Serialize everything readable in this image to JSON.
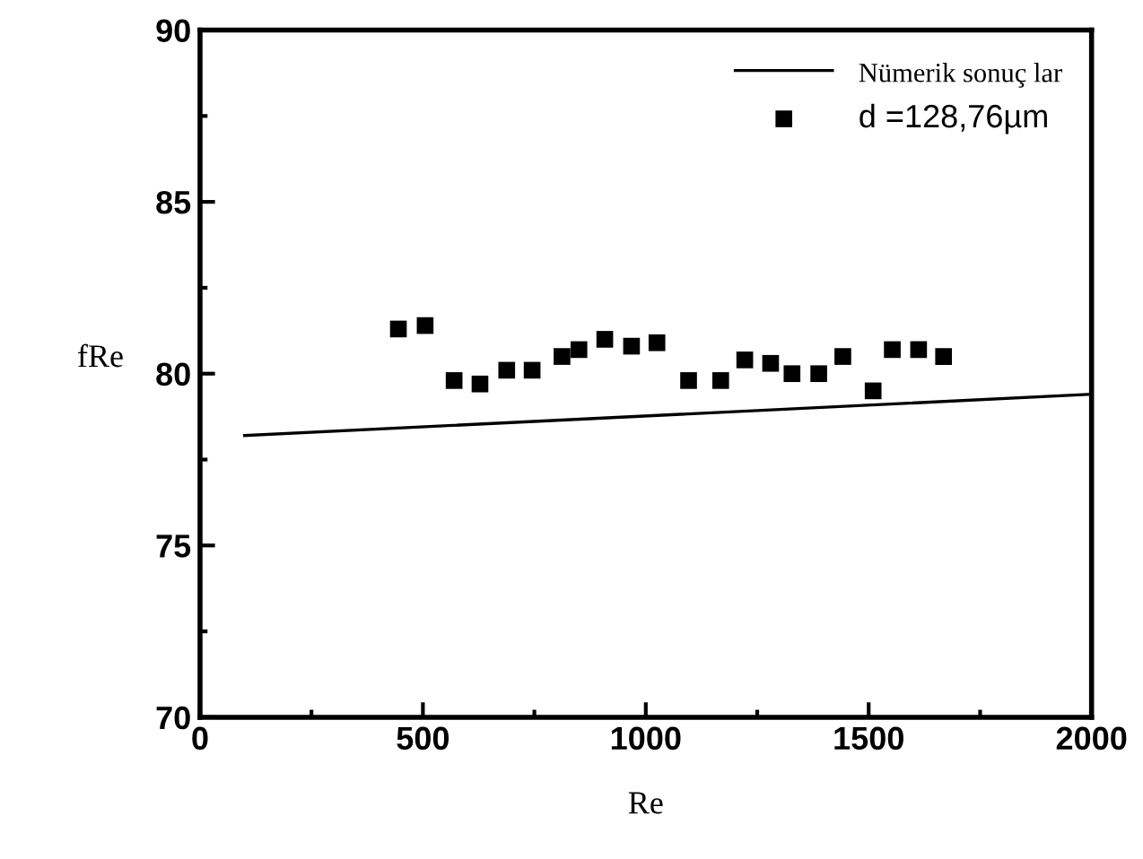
{
  "chart_data": {
    "type": "scatter",
    "xlabel": "Re",
    "ylabel": "fRe",
    "xlim": [
      0,
      2000
    ],
    "ylim": [
      70,
      90
    ],
    "xticks": [
      0,
      500,
      1000,
      1500,
      2000
    ],
    "yticks": [
      70,
      75,
      80,
      85,
      90
    ],
    "legend": "top right",
    "grid": false,
    "series": [
      {
        "name": "Nümerik sonuç lar",
        "type": "line",
        "color": "#000000",
        "x": [
          100,
          2000
        ],
        "values": [
          78.2,
          79.4
        ],
        "line_style": "solid"
      },
      {
        "name": "d =128,76µm",
        "color": "#000000",
        "marker": "square",
        "x": [
          445,
          505,
          570,
          628,
          688,
          745,
          812,
          850,
          908,
          968,
          1025,
          1096,
          1168,
          1222,
          1280,
          1328,
          1388,
          1442,
          1510,
          1553,
          1612,
          1668
        ],
        "values": [
          81.3,
          81.4,
          79.8,
          79.7,
          80.1,
          80.1,
          80.5,
          80.7,
          81.0,
          80.8,
          80.9,
          79.8,
          79.8,
          80.4,
          80.3,
          80.0,
          80.0,
          80.5,
          79.5,
          80.7,
          80.7,
          80.5
        ]
      }
    ]
  }
}
